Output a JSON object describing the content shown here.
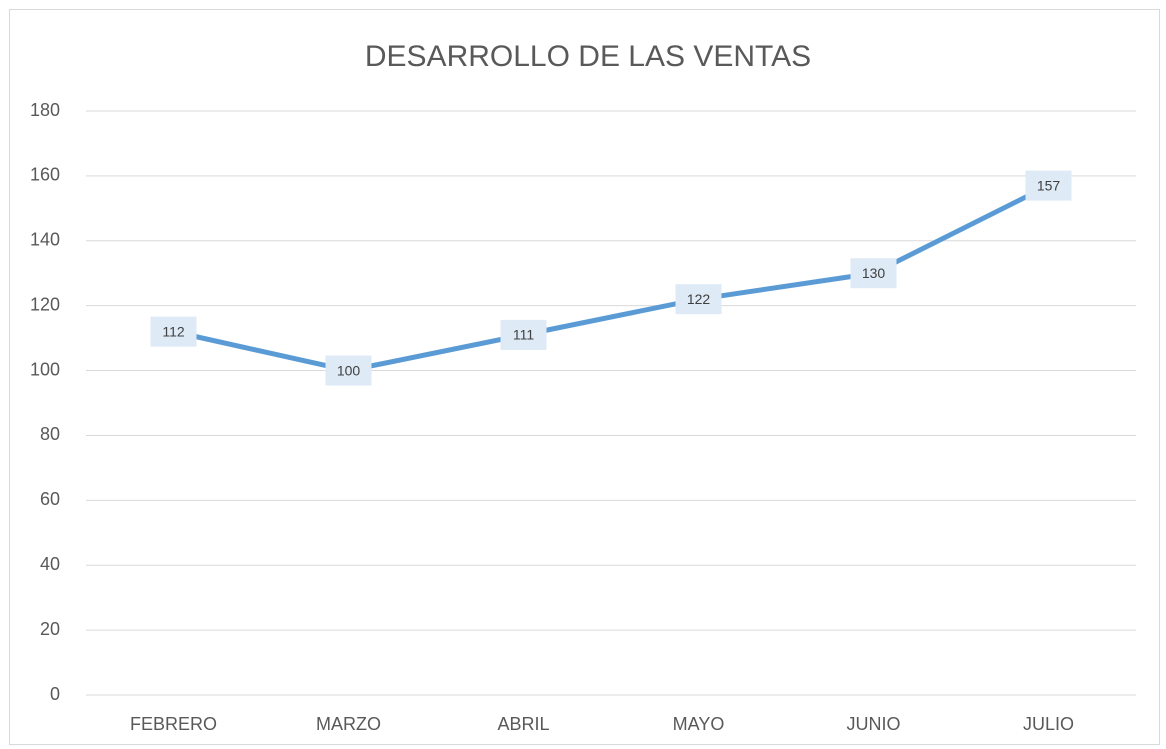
{
  "chart_data": {
    "type": "line",
    "title": "DESARROLLO DE LAS VENTAS",
    "categories": [
      "FEBRERO",
      "MARZO",
      "ABRIL",
      "MAYO",
      "JUNIO",
      "JULIO"
    ],
    "values": [
      112,
      100,
      111,
      122,
      130,
      157
    ],
    "color": "#5b9bd5",
    "ylim": [
      0,
      180
    ],
    "yticks": [
      0,
      20,
      40,
      60,
      80,
      100,
      120,
      140,
      160,
      180
    ],
    "grid": true
  }
}
